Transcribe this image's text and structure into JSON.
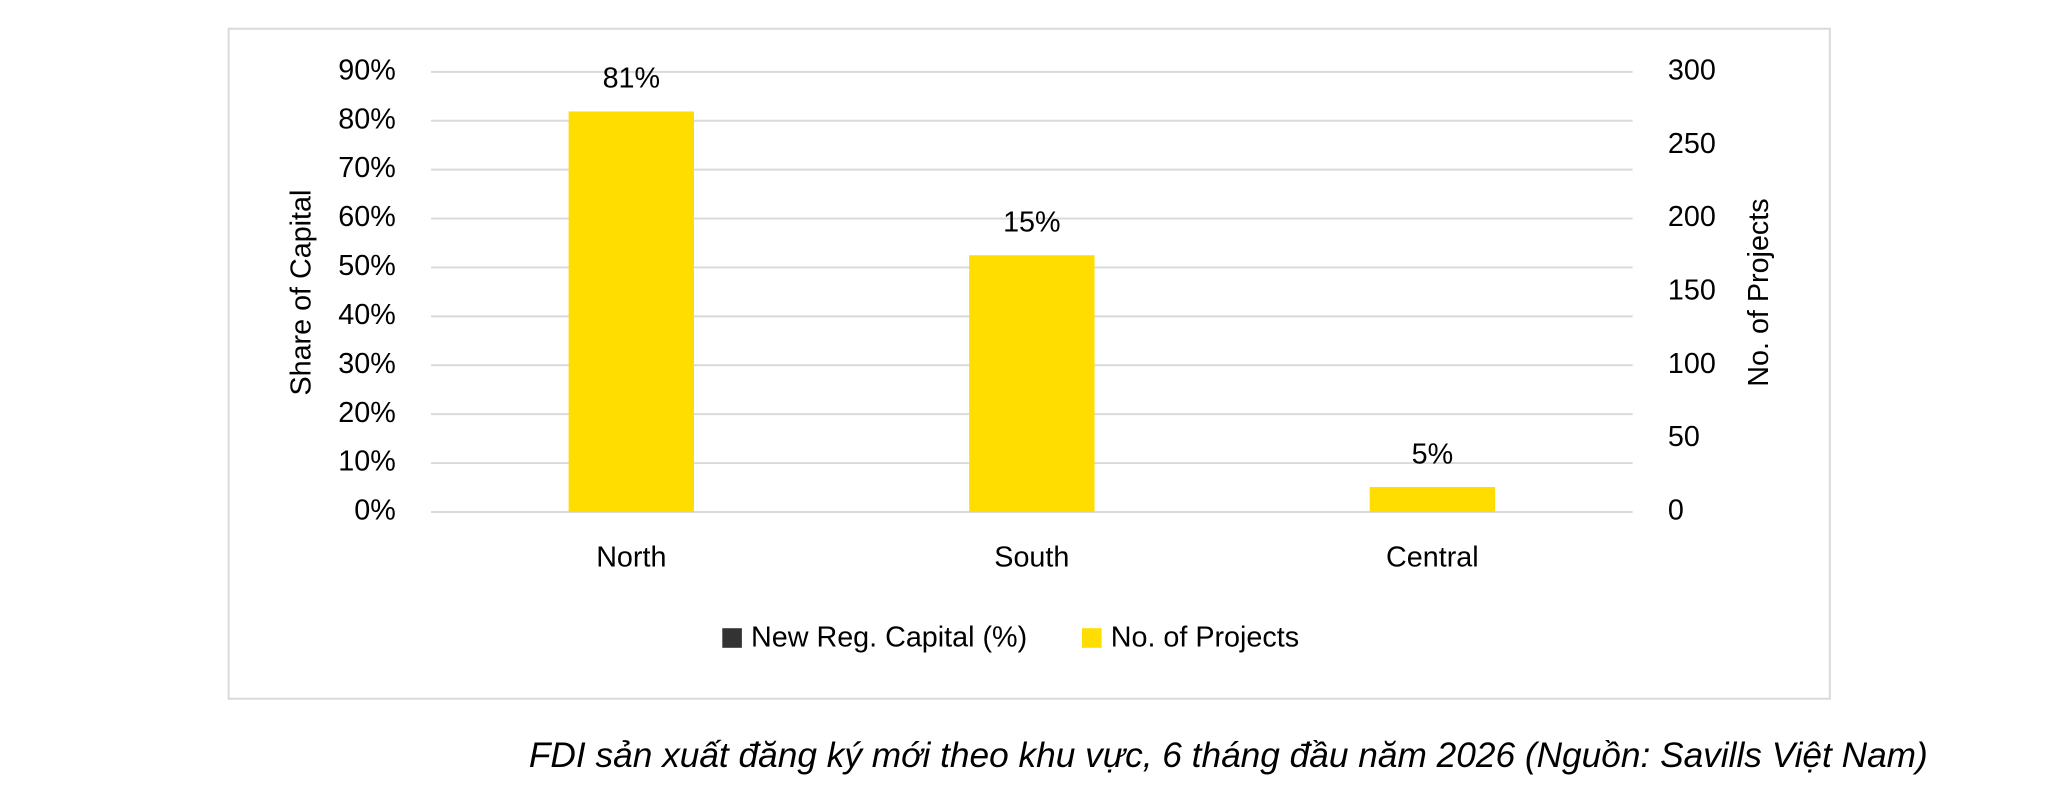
{
  "chart_data": {
    "type": "bar",
    "categories": [
      "North",
      "South",
      "Central"
    ],
    "series": [
      {
        "name": "New Reg. Capital (%)",
        "color": "#333333",
        "values": [
          81,
          15,
          5
        ],
        "value_labels": [
          "81%",
          "15%",
          "5%"
        ]
      },
      {
        "name": "No. of Projects",
        "color": "#FFDD00",
        "values": [
          273,
          175,
          17
        ],
        "axis": "y2"
      }
    ],
    "ylabel": "Share of Capital",
    "y2label": "No. of Projects",
    "ylim": [
      0,
      90
    ],
    "yticks": [
      {
        "value": 0,
        "label": "0%"
      },
      {
        "value": 10,
        "label": "10%"
      },
      {
        "value": 20,
        "label": "20%"
      },
      {
        "value": 30,
        "label": "30%"
      },
      {
        "value": 40,
        "label": "40%"
      },
      {
        "value": 50,
        "label": "50%"
      },
      {
        "value": 60,
        "label": "60%"
      },
      {
        "value": 70,
        "label": "70%"
      },
      {
        "value": 80,
        "label": "80%"
      },
      {
        "value": 90,
        "label": "90%"
      }
    ],
    "y2lim": [
      0,
      300
    ],
    "y2ticks": [
      0,
      50,
      100,
      150,
      200,
      250,
      300
    ],
    "grid": true,
    "legend": "bottom"
  },
  "caption": "FDI sản xuất đăng ký mới theo khu vực, 6 tháng đầu năm 2026 (Nguồn: Savills Việt Nam)"
}
